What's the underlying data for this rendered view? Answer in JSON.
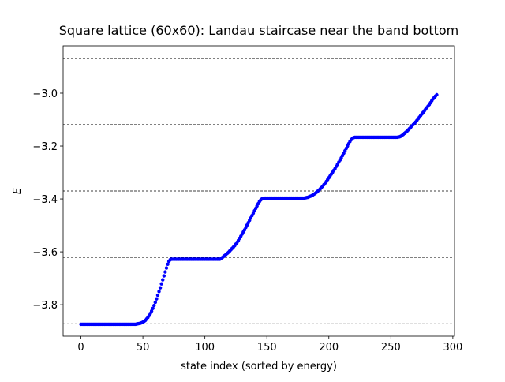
{
  "chart_data": {
    "type": "scatter",
    "title": "Square lattice (60x60): Landau staircase near the band bottom",
    "x_label": "state index (sorted by energy)",
    "y_label": "E",
    "color": "#0000ff",
    "hline_color": "#000000",
    "xlim": [
      -14.35,
      301.35
    ],
    "ylim": [
      -3.919,
      -2.821
    ],
    "xticks": [
      0,
      50,
      100,
      150,
      200,
      250,
      300
    ],
    "yticks": [
      {
        "value": -3.8,
        "label": "−3.8"
      },
      {
        "value": -3.6,
        "label": "−3.6"
      },
      {
        "value": -3.4,
        "label": "−3.4"
      },
      {
        "value": -3.2,
        "label": "−3.2"
      },
      {
        "value": -3.0,
        "label": "−3.0"
      }
    ],
    "hlines": [
      -3.872,
      -3.621,
      -3.37,
      -3.119,
      -2.869
    ],
    "x": [
      0,
      1,
      2,
      3,
      4,
      5,
      6,
      7,
      8,
      9,
      10,
      11,
      12,
      13,
      14,
      15,
      16,
      17,
      18,
      19,
      20,
      21,
      22,
      23,
      24,
      25,
      26,
      27,
      28,
      29,
      30,
      31,
      32,
      33,
      34,
      35,
      36,
      37,
      38,
      39,
      40,
      41,
      42,
      43,
      44,
      45,
      46,
      47,
      48,
      49,
      50,
      51,
      52,
      53,
      54,
      55,
      56,
      57,
      58,
      59,
      60,
      61,
      62,
      63,
      64,
      65,
      66,
      67,
      68,
      69,
      70,
      71,
      72,
      73,
      74,
      75,
      76,
      77,
      78,
      79,
      80,
      81,
      82,
      83,
      84,
      85,
      86,
      87,
      88,
      89,
      90,
      91,
      92,
      93,
      94,
      95,
      96,
      97,
      98,
      99,
      100,
      101,
      102,
      103,
      104,
      105,
      106,
      107,
      108,
      109,
      110,
      111,
      112,
      113,
      114,
      115,
      116,
      117,
      118,
      119,
      120,
      121,
      122,
      123,
      124,
      125,
      126,
      127,
      128,
      129,
      130,
      131,
      132,
      133,
      134,
      135,
      136,
      137,
      138,
      139,
      140,
      141,
      142,
      143,
      144,
      145,
      146,
      147,
      148,
      149,
      150,
      151,
      152,
      153,
      154,
      155,
      156,
      157,
      158,
      159,
      160,
      161,
      162,
      163,
      164,
      165,
      166,
      167,
      168,
      169,
      170,
      171,
      172,
      173,
      174,
      175,
      176,
      177,
      178,
      179,
      180,
      181,
      182,
      183,
      184,
      185,
      186,
      187,
      188,
      189,
      190,
      191,
      192,
      193,
      194,
      195,
      196,
      197,
      198,
      199,
      200,
      201,
      202,
      203,
      204,
      205,
      206,
      207,
      208,
      209,
      210,
      211,
      212,
      213,
      214,
      215,
      216,
      217,
      218,
      219,
      220,
      221,
      222,
      223,
      224,
      225,
      226,
      227,
      228,
      229,
      230,
      231,
      232,
      233,
      234,
      235,
      236,
      237,
      238,
      239,
      240,
      241,
      242,
      243,
      244,
      245,
      246,
      247,
      248,
      249,
      250,
      251,
      252,
      253,
      254,
      255,
      256,
      257,
      258,
      259,
      260,
      261,
      262,
      263,
      264,
      265,
      266,
      267,
      268,
      269,
      270,
      271,
      272,
      273,
      274,
      275,
      276,
      277,
      278,
      279,
      280,
      281,
      282,
      283,
      284,
      285,
      286,
      287
    ],
    "values": [
      -3.874,
      -3.874,
      -3.874,
      -3.874,
      -3.874,
      -3.874,
      -3.874,
      -3.874,
      -3.874,
      -3.874,
      -3.874,
      -3.874,
      -3.874,
      -3.874,
      -3.874,
      -3.874,
      -3.874,
      -3.874,
      -3.874,
      -3.874,
      -3.874,
      -3.874,
      -3.874,
      -3.874,
      -3.874,
      -3.874,
      -3.874,
      -3.874,
      -3.874,
      -3.874,
      -3.874,
      -3.874,
      -3.874,
      -3.874,
      -3.874,
      -3.874,
      -3.874,
      -3.874,
      -3.874,
      -3.874,
      -3.874,
      -3.874,
      -3.874,
      -3.874,
      -3.874,
      -3.873,
      -3.872,
      -3.871,
      -3.87,
      -3.868,
      -3.866,
      -3.863,
      -3.859,
      -3.854,
      -3.848,
      -3.841,
      -3.833,
      -3.824,
      -3.814,
      -3.803,
      -3.791,
      -3.778,
      -3.764,
      -3.75,
      -3.736,
      -3.721,
      -3.706,
      -3.691,
      -3.676,
      -3.661,
      -3.647,
      -3.636,
      -3.63,
      -3.628,
      -3.628,
      -3.628,
      -3.628,
      -3.628,
      -3.628,
      -3.628,
      -3.628,
      -3.628,
      -3.628,
      -3.628,
      -3.628,
      -3.628,
      -3.628,
      -3.628,
      -3.628,
      -3.628,
      -3.628,
      -3.628,
      -3.628,
      -3.628,
      -3.628,
      -3.628,
      -3.628,
      -3.628,
      -3.628,
      -3.628,
      -3.628,
      -3.628,
      -3.628,
      -3.628,
      -3.628,
      -3.628,
      -3.628,
      -3.628,
      -3.628,
      -3.628,
      -3.628,
      -3.628,
      -3.628,
      -3.625,
      -3.622,
      -3.618,
      -3.614,
      -3.61,
      -3.606,
      -3.602,
      -3.597,
      -3.592,
      -3.587,
      -3.582,
      -3.577,
      -3.571,
      -3.564,
      -3.557,
      -3.549,
      -3.541,
      -3.533,
      -3.525,
      -3.517,
      -3.508,
      -3.499,
      -3.49,
      -3.481,
      -3.472,
      -3.463,
      -3.454,
      -3.445,
      -3.436,
      -3.427,
      -3.418,
      -3.41,
      -3.404,
      -3.4,
      -3.398,
      -3.397,
      -3.397,
      -3.397,
      -3.397,
      -3.397,
      -3.397,
      -3.397,
      -3.397,
      -3.397,
      -3.397,
      -3.397,
      -3.397,
      -3.397,
      -3.397,
      -3.397,
      -3.397,
      -3.397,
      -3.397,
      -3.397,
      -3.397,
      -3.397,
      -3.397,
      -3.397,
      -3.397,
      -3.397,
      -3.397,
      -3.397,
      -3.397,
      -3.397,
      -3.397,
      -3.397,
      -3.397,
      -3.397,
      -3.396,
      -3.395,
      -3.394,
      -3.392,
      -3.39,
      -3.388,
      -3.385,
      -3.382,
      -3.379,
      -3.375,
      -3.371,
      -3.367,
      -3.362,
      -3.357,
      -3.352,
      -3.346,
      -3.34,
      -3.334,
      -3.327,
      -3.32,
      -3.313,
      -3.306,
      -3.299,
      -3.292,
      -3.285,
      -3.277,
      -3.269,
      -3.261,
      -3.253,
      -3.245,
      -3.236,
      -3.227,
      -3.218,
      -3.209,
      -3.2,
      -3.191,
      -3.183,
      -3.176,
      -3.171,
      -3.168,
      -3.167,
      -3.167,
      -3.167,
      -3.167,
      -3.167,
      -3.167,
      -3.167,
      -3.167,
      -3.167,
      -3.167,
      -3.167,
      -3.167,
      -3.167,
      -3.167,
      -3.167,
      -3.167,
      -3.167,
      -3.167,
      -3.167,
      -3.167,
      -3.167,
      -3.167,
      -3.167,
      -3.167,
      -3.167,
      -3.167,
      -3.167,
      -3.167,
      -3.167,
      -3.167,
      -3.167,
      -3.167,
      -3.167,
      -3.167,
      -3.167,
      -3.166,
      -3.165,
      -3.163,
      -3.16,
      -3.156,
      -3.152,
      -3.148,
      -3.144,
      -3.139,
      -3.134,
      -3.129,
      -3.124,
      -3.119,
      -3.114,
      -3.109,
      -3.103,
      -3.097,
      -3.091,
      -3.085,
      -3.079,
      -3.073,
      -3.067,
      -3.061,
      -3.055,
      -3.049,
      -3.043,
      -3.036,
      -3.029,
      -3.022,
      -3.016,
      -3.011,
      -3.006
    ]
  }
}
